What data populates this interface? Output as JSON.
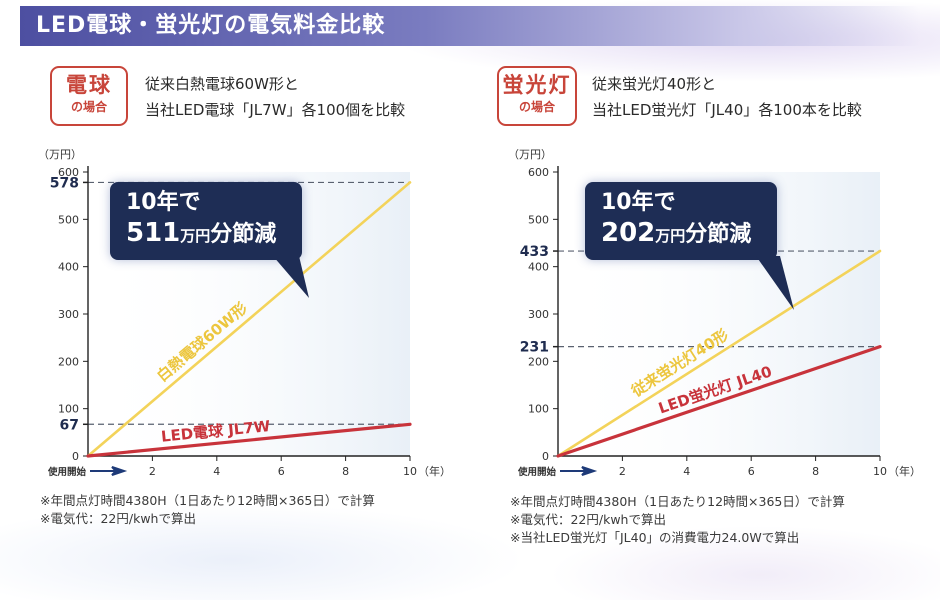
{
  "header": {
    "title": "LED電球・蛍光灯の電気料金比較"
  },
  "panels": [
    {
      "badge_main": "電球",
      "badge_sub": "の場合",
      "comparison_line1": "従来白熱電球60W形と",
      "comparison_line2": "当社LED電球「JL7W」各100個を比較",
      "callout": {
        "line1": "10年で",
        "amount": "511",
        "unit": "万円",
        "rest": "分節減"
      },
      "notes": [
        "※年間点灯時間4380H（1日あたり12時間×365日）で計算",
        "※電気代：22円/kwhで算出"
      ]
    },
    {
      "badge_main": "蛍光灯",
      "badge_sub": "の場合",
      "comparison_line1": "従来蛍光灯40形と",
      "comparison_line2": "当社LED蛍光灯「JL40」各100本を比較",
      "callout": {
        "line1": "10年で",
        "amount": "202",
        "unit": "万円",
        "rest": "分節減"
      },
      "notes": [
        "※年間点灯時間4380H（1日あたり12時間×365日）で計算",
        "※電気代：22円/kwhで算出",
        "※当社LED蛍光灯「JL40」の消費電力24.0Wで算出"
      ]
    }
  ],
  "colors": {
    "legacy_line": "#f3d35a",
    "led_line": "#c8333b",
    "axis": "#222222",
    "dashed": "#5a6270",
    "accent_red": "#c8453a",
    "callout_bg": "#1e2d55",
    "highlight_value": "#1f2c4f"
  },
  "chart_data": [
    {
      "type": "line",
      "ylabel": "（万円）",
      "xlabel_unit": "（年）",
      "x_start_label": "使用開始",
      "xlim": [
        0,
        10
      ],
      "ylim": [
        0,
        600
      ],
      "x_ticks": [
        2,
        4,
        6,
        8,
        10
      ],
      "y_ticks": [
        0,
        100,
        200,
        300,
        400,
        500,
        600
      ],
      "highlighted_values": [
        578,
        67
      ],
      "series": [
        {
          "name": "白熱電球60W形",
          "x": [
            0,
            10
          ],
          "y": [
            0,
            578
          ],
          "color": "#f3d35a"
        },
        {
          "name": "LED電球 JL7W",
          "x": [
            0,
            10
          ],
          "y": [
            0,
            67
          ],
          "color": "#c8333b"
        }
      ]
    },
    {
      "type": "line",
      "ylabel": "（万円）",
      "xlabel_unit": "（年）",
      "x_start_label": "使用開始",
      "xlim": [
        0,
        10
      ],
      "ylim": [
        0,
        600
      ],
      "x_ticks": [
        2,
        4,
        6,
        8,
        10
      ],
      "y_ticks": [
        0,
        100,
        200,
        300,
        400,
        500,
        600
      ],
      "highlighted_values": [
        433,
        231
      ],
      "series": [
        {
          "name": "従来蛍光灯40形",
          "x": [
            0,
            10
          ],
          "y": [
            0,
            433
          ],
          "color": "#f3d35a"
        },
        {
          "name": "LED蛍光灯 JL40",
          "x": [
            0,
            10
          ],
          "y": [
            0,
            231
          ],
          "color": "#c8333b"
        }
      ]
    }
  ]
}
